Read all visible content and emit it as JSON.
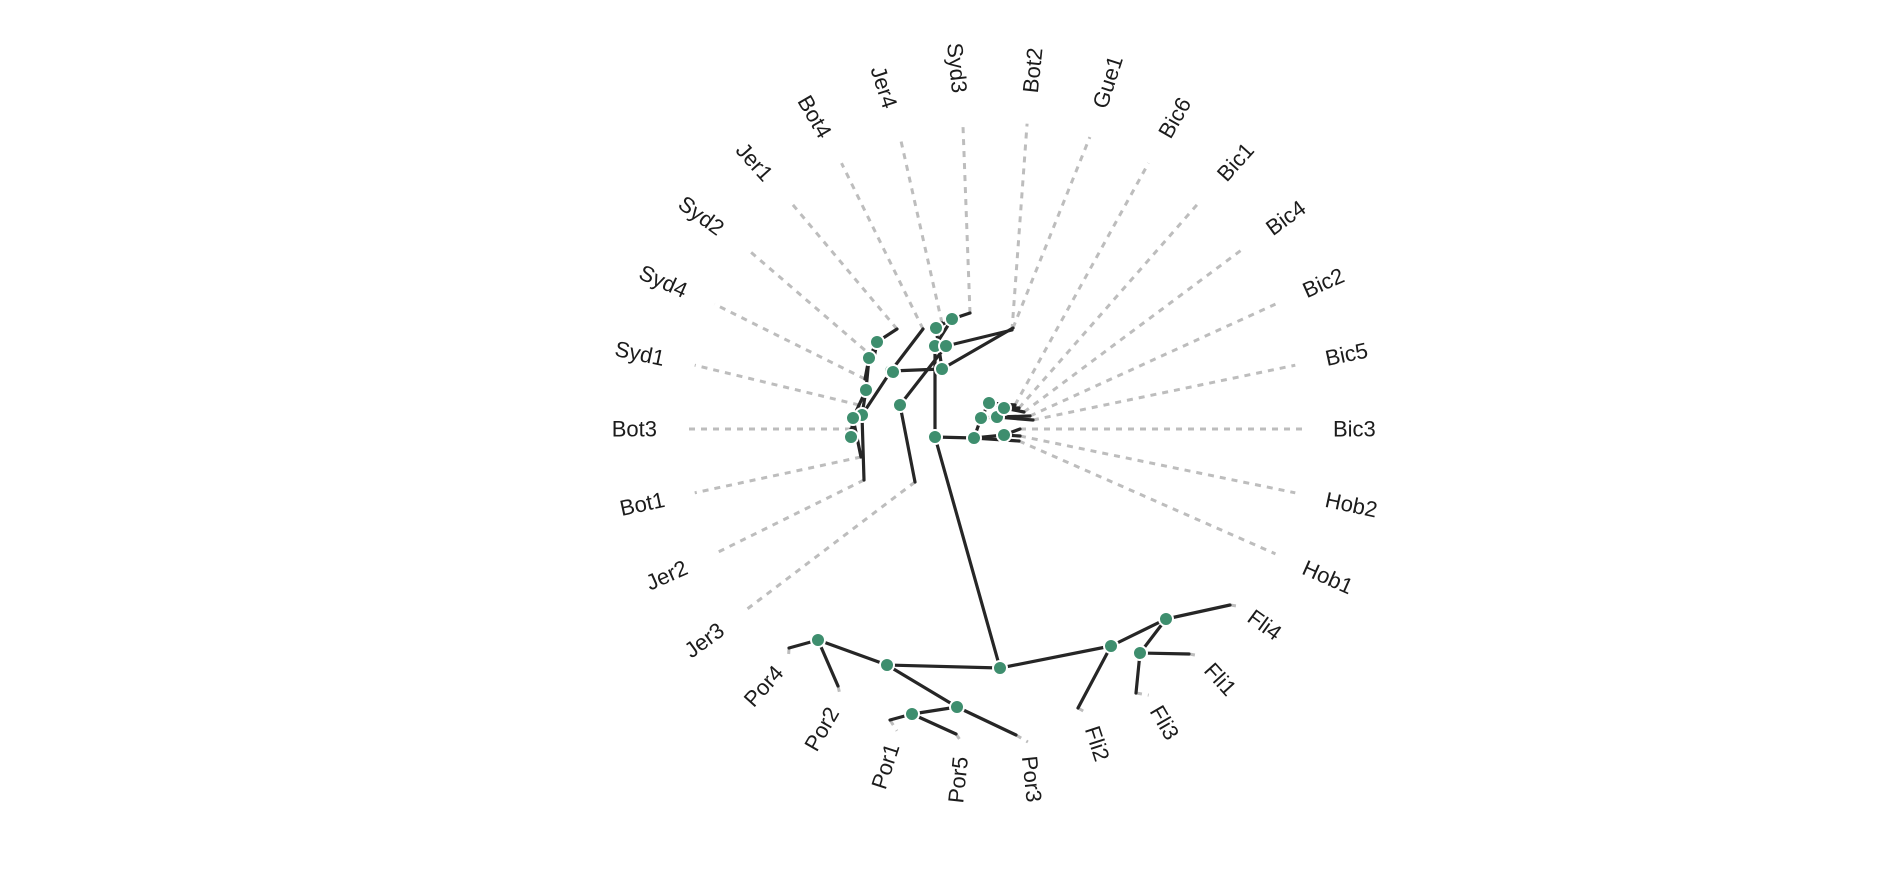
{
  "diagram": {
    "type": "unrooted-phylogenetic-tree",
    "colors": {
      "branch": "#262626",
      "guide": "#bdbdbd",
      "node": "#3e8e6e",
      "label": "#1c1c1c"
    },
    "tips": [
      "Bic3",
      "Hob2",
      "Hob1",
      "Fli4",
      "Fli1",
      "Fli3",
      "Fli2",
      "Por3",
      "Por5",
      "Por1",
      "Por2",
      "Por4",
      "Jer3",
      "Jer2",
      "Bot1",
      "Bot3",
      "Syd1",
      "Syd4",
      "Syd2",
      "Jer1",
      "Bot4",
      "Jer4",
      "Syd3",
      "Bot2",
      "Gue1",
      "Bic6",
      "Bic1",
      "Bic4",
      "Bic2",
      "Bic5"
    ]
  }
}
